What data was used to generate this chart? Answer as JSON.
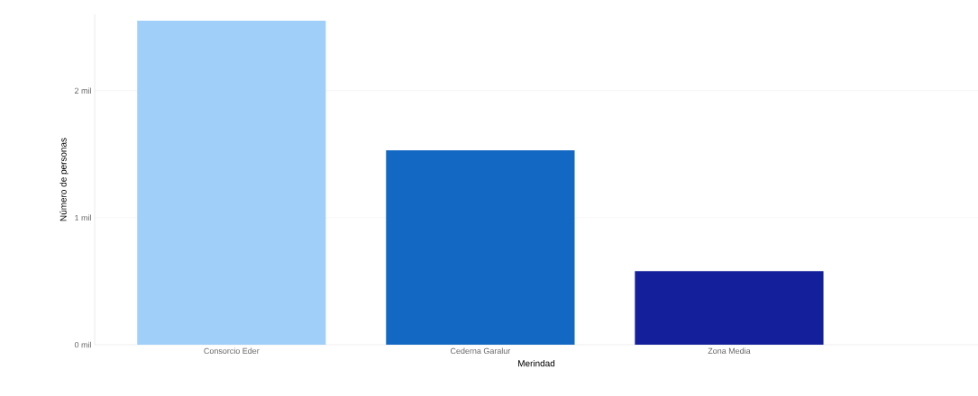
{
  "chart_data": {
    "type": "bar",
    "xlabel": "Merindad",
    "ylabel": "Número de personas",
    "categories": [
      "Consorcio Eder",
      "Cederna Garalur",
      "Zona Media"
    ],
    "values": [
      2.55,
      1.53,
      0.58
    ],
    "ylim": [
      0,
      2.6
    ],
    "colors": [
      "#a0cffa",
      "#1268c3",
      "#14209b"
    ],
    "yticks": [
      {
        "value": 0,
        "label": "0 mil"
      },
      {
        "value": 1,
        "label": "1 mil"
      },
      {
        "value": 2,
        "label": "2 mil"
      }
    ],
    "grid": "y"
  }
}
